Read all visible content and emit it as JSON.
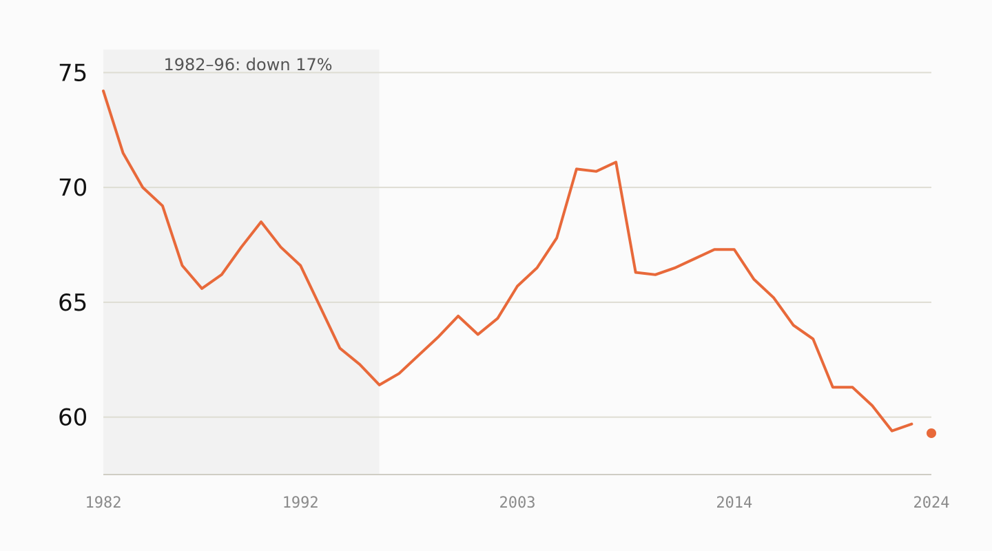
{
  "colors": {
    "background": "#fbfbfb",
    "line": "#e8693a",
    "grid": "#deddd3",
    "shade": "#f2f2f2",
    "axis": "#cfcdc4"
  },
  "chart_data": {
    "type": "line",
    "title": "",
    "xlabel": "",
    "ylabel": "",
    "x": [
      1982,
      1983,
      1984,
      1985,
      1986,
      1987,
      1988,
      1989,
      1990,
      1991,
      1992,
      1993,
      1994,
      1995,
      1996,
      1997,
      1998,
      1999,
      2000,
      2001,
      2002,
      2003,
      2004,
      2005,
      2006,
      2007,
      2008,
      2009,
      2010,
      2011,
      2012,
      2013,
      2014,
      2015,
      2016,
      2017,
      2018,
      2019,
      2020,
      2021,
      2022,
      2023,
      2024
    ],
    "series": [
      {
        "values": [
          74.2,
          71.5,
          70.0,
          69.2,
          66.6,
          65.6,
          66.2,
          67.4,
          68.5,
          67.4,
          66.6,
          64.8,
          63.0,
          62.3,
          61.4,
          61.9,
          62.7,
          63.5,
          64.4,
          63.6,
          64.3,
          65.7,
          66.5,
          67.8,
          70.8,
          70.7,
          71.1,
          66.3,
          66.2,
          66.5,
          66.9,
          67.3,
          67.3,
          66.0,
          65.2,
          64.0,
          63.4,
          61.3,
          61.3,
          60.5,
          59.4,
          59.7,
          59.3
        ]
      }
    ],
    "last_point_highlight": true,
    "xlim": [
      1982,
      2024
    ],
    "ylim": [
      57.5,
      76
    ],
    "y_ticks": [
      60,
      65,
      70,
      75
    ],
    "x_ticks": [
      1982,
      1992,
      2003,
      2014,
      2024
    ],
    "grid": true,
    "shaded_region": {
      "x_start": 1982,
      "x_end": 1996,
      "label": "1982–96: down 17%"
    }
  }
}
